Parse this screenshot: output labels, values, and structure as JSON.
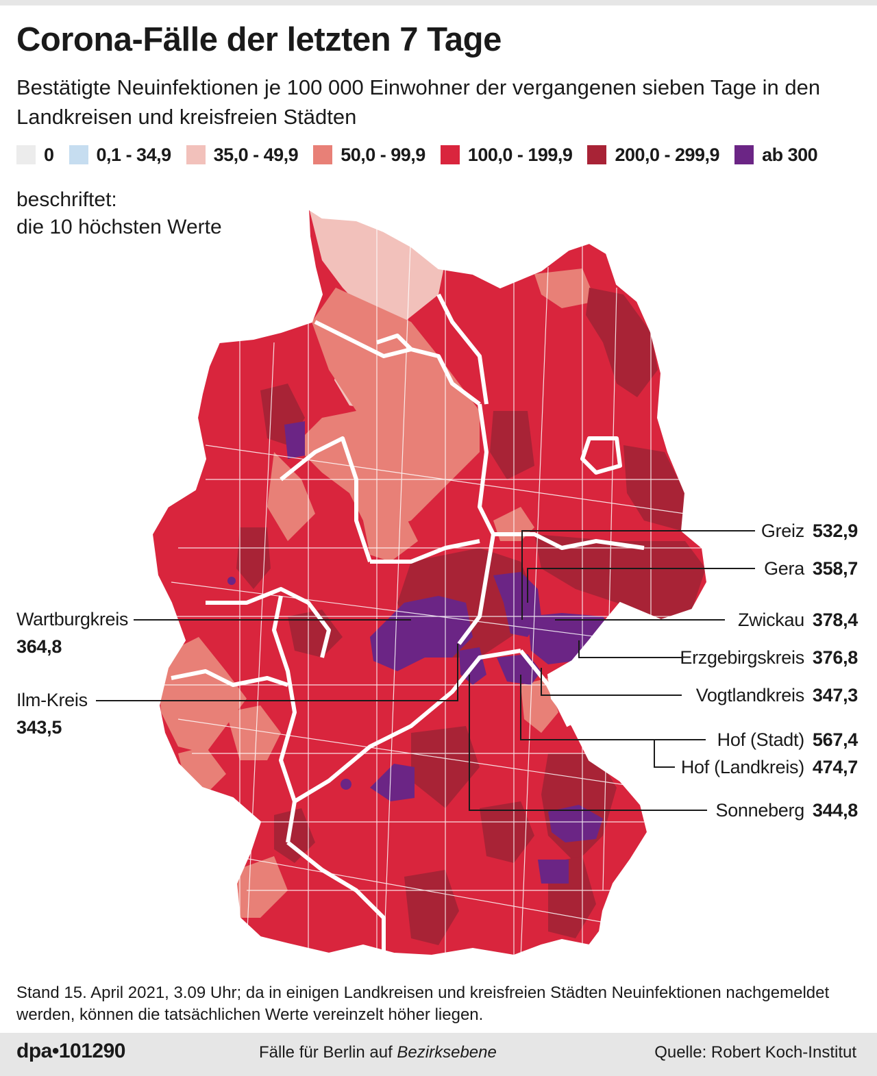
{
  "header": {
    "title": "Corona-Fälle der letzten 7 Tage",
    "subtitle": "Bestätigte Neuinfektionen je 100 000 Einwohner der vergangenen sieben Tage in den Landkreisen und kreisfreien Städten"
  },
  "legend": [
    {
      "label": "0",
      "color": "#ececec"
    },
    {
      "label": "0,1 - 34,9",
      "color": "#c6ddf0"
    },
    {
      "label": "35,0 - 49,9",
      "color": "#f2c1bb"
    },
    {
      "label": "50,0 - 99,9",
      "color": "#e88077"
    },
    {
      "label": "100,0 - 199,9",
      "color": "#d9253d"
    },
    {
      "label": "200,0 - 299,9",
      "color": "#a82336"
    },
    {
      "label": "ab 300",
      "color": "#6b2585"
    }
  ],
  "note": {
    "line1": "beschriftet:",
    "line2": "die 10 höchsten Werte"
  },
  "chart_data": {
    "type": "choropleth",
    "title": "Corona-Fälle der letzten 7 Tage",
    "unit": "Neuinfektionen je 100 000 Einwohner (7 Tage)",
    "labeled": [
      {
        "name": "Greiz",
        "value": "532,9"
      },
      {
        "name": "Gera",
        "value": "358,7"
      },
      {
        "name": "Zwickau",
        "value": "378,4"
      },
      {
        "name": "Erzgebirgskreis",
        "value": "376,8"
      },
      {
        "name": "Vogtlandkreis",
        "value": "347,3"
      },
      {
        "name": "Hof (Stadt)",
        "value": "567,4"
      },
      {
        "name": "Hof (Landkreis)",
        "value": "474,7"
      },
      {
        "name": "Sonneberg",
        "value": "344,8"
      },
      {
        "name": "Wartburgkreis",
        "value": "364,8"
      },
      {
        "name": "Ilm-Kreis",
        "value": "343,5"
      }
    ]
  },
  "footnote": "Stand 15. April 2021, 3.09 Uhr; da in einigen Landkreisen und kreisfreien Städten Neuinfektionen nachgemeldet werden, können die tatsächlichen Werte vereinzelt höher liegen.",
  "footer": {
    "logo": "dpa•101290",
    "center_prefix": "Fälle für Berlin auf ",
    "center_italic": "Bezirksebene",
    "source": "Quelle: Robert Koch-Institut"
  },
  "colors": {
    "background": "#ffffff",
    "footer_bg": "#e6e6e6",
    "border_white": "#ffffff"
  }
}
